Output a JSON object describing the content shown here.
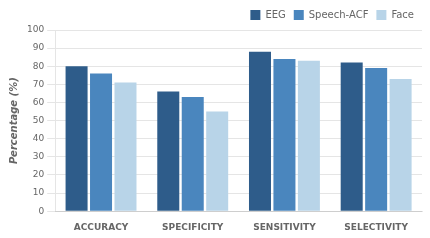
{
  "chart_data": {
    "type": "bar",
    "categories": [
      "ACCURACY",
      "SPECIFICITY",
      "SENSITIVITY",
      "SELECTIVITY"
    ],
    "series": [
      {
        "name": "EEG",
        "color": "#2E5C8A",
        "values": [
          80,
          66,
          88,
          82
        ]
      },
      {
        "name": "Speech-ACF",
        "color": "#4A86BE",
        "values": [
          76,
          63,
          84,
          79
        ]
      },
      {
        "name": "Face",
        "color": "#B8D4E8",
        "values": [
          71,
          55,
          83,
          73
        ]
      }
    ],
    "ylabel": "Percentage (%)",
    "ylim": [
      0,
      100
    ],
    "yticks": [
      0,
      10,
      20,
      30,
      40,
      50,
      60,
      70,
      80,
      90,
      100
    ],
    "grid": true,
    "legend": "upper right"
  }
}
